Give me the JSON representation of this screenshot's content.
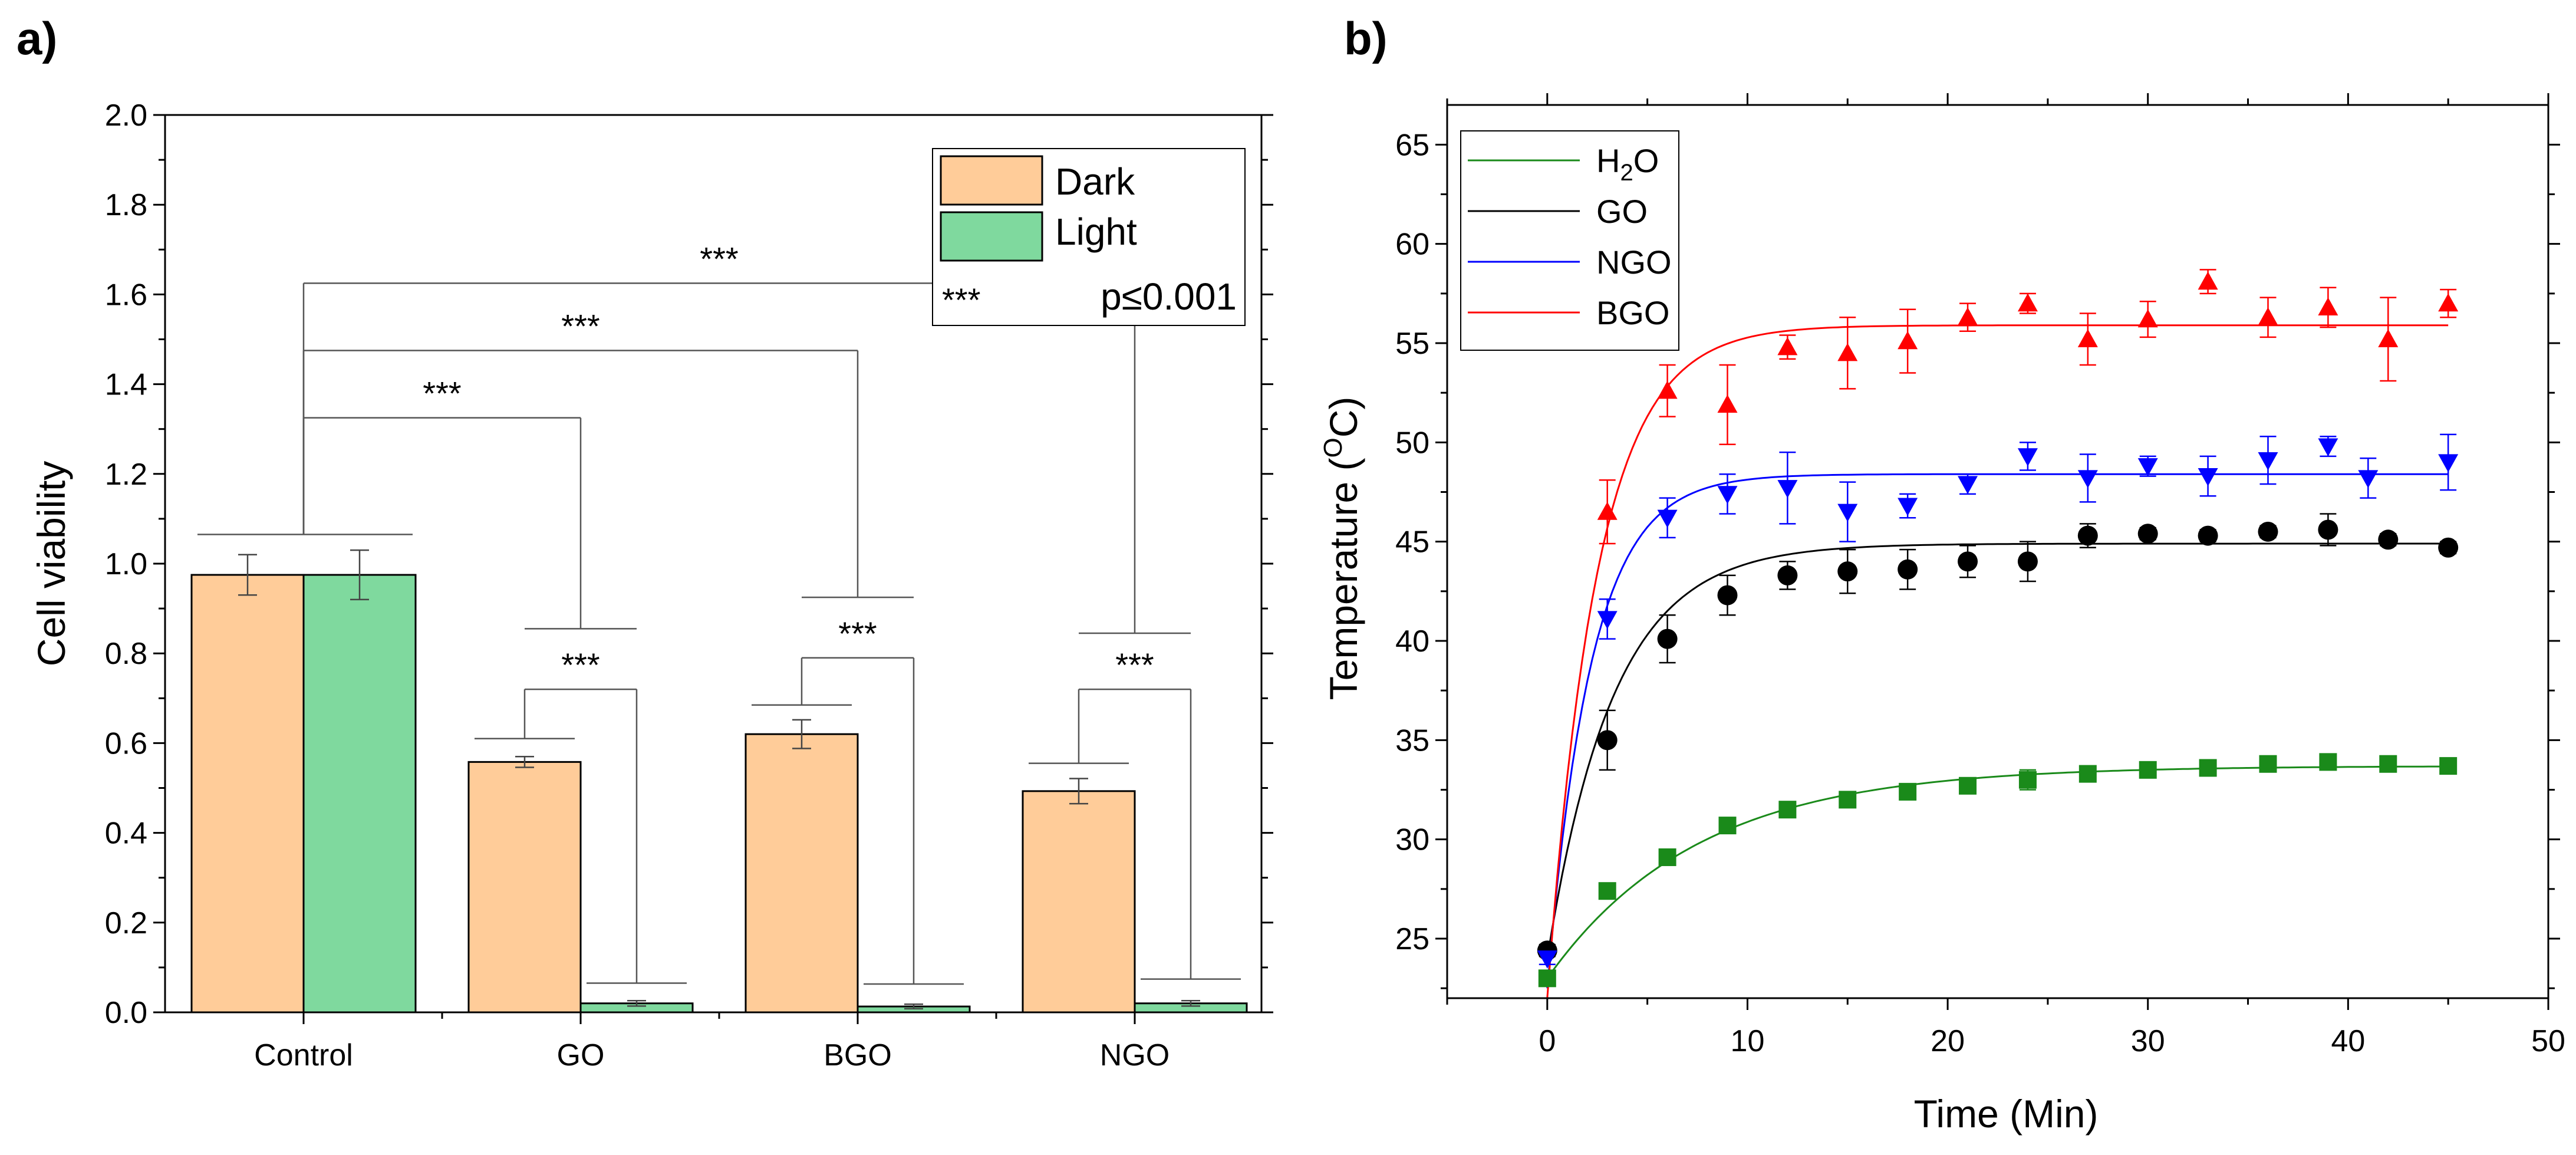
{
  "chart_data": [
    {
      "panel": "a)",
      "type": "bar",
      "ylabel": "Cell viability",
      "xlabel": "",
      "ylim": [
        0,
        2.0
      ],
      "yticks": [
        "0.0",
        "0.2",
        "0.4",
        "0.6",
        "0.8",
        "1.0",
        "1.2",
        "1.4",
        "1.6",
        "1.8",
        "2.0"
      ],
      "categories": [
        "Control",
        "GO",
        "BGO",
        "NGO"
      ],
      "series": [
        {
          "name": "Dark",
          "color": "#FFCC99",
          "values": [
            0.975,
            0.558,
            0.62,
            0.493
          ],
          "errors": [
            0.045,
            0.012,
            0.032,
            0.028
          ]
        },
        {
          "name": "Light",
          "color": "#7FD99E",
          "values": [
            0.975,
            0.02,
            0.013,
            0.02
          ],
          "errors": [
            0.055,
            0.006,
            0.005,
            0.006
          ]
        }
      ],
      "legend": {
        "entries": [
          "Dark",
          "Light"
        ],
        "sig_marker": "***",
        "sig_text": "p≤0.001",
        "placement": "top-right"
      },
      "significance": [
        {
          "label": "***",
          "from": "Control",
          "to": "GO"
        },
        {
          "label": "***",
          "from": "Control",
          "to": "BGO"
        },
        {
          "label": "***",
          "from": "Control",
          "to": "NGO"
        },
        {
          "label": "***",
          "from": "GO Dark",
          "to": "GO Light"
        },
        {
          "label": "***",
          "from": "BGO Dark",
          "to": "BGO Light"
        },
        {
          "label": "***",
          "from": "NGO Dark",
          "to": "NGO Light"
        }
      ]
    },
    {
      "panel": "b)",
      "type": "scatter",
      "xlabel": "Time (Min)",
      "ylabel_main": "Temperature (",
      "ylabel_sup": "O",
      "ylabel_tail": "C)",
      "xlim": [
        -5,
        50
      ],
      "ylim": [
        22,
        67
      ],
      "xticks": [
        "0",
        "10",
        "20",
        "30",
        "40",
        "50"
      ],
      "yticks": [
        "25",
        "30",
        "35",
        "40",
        "45",
        "50",
        "55",
        "60",
        "65"
      ],
      "series": [
        {
          "name": "H2O",
          "legend_main": "H",
          "legend_sub": "2",
          "legend_tail": "O",
          "color": "#1A8A1A",
          "marker": "square",
          "x": [
            0,
            3,
            6,
            9,
            12,
            15,
            18,
            21,
            24,
            27,
            30,
            33,
            36,
            39,
            42,
            45
          ],
          "y": [
            23.0,
            27.4,
            29.1,
            30.7,
            31.5,
            32.0,
            32.4,
            32.7,
            33.0,
            33.3,
            33.5,
            33.6,
            33.8,
            33.9,
            33.8,
            33.7
          ],
          "err": [
            0.3,
            0.3,
            0.3,
            0.3,
            0.3,
            0.3,
            0.4,
            0.4,
            0.5,
            0.3,
            0.3,
            0.3,
            0.3,
            0.3,
            0.3,
            0.3
          ],
          "fit": {
            "y0": 23.0,
            "ymax": 33.7,
            "tau": 7.5
          }
        },
        {
          "name": "GO",
          "color": "#000000",
          "marker": "circle",
          "x": [
            0,
            3,
            6,
            9,
            12,
            15,
            18,
            21,
            24,
            27,
            30,
            33,
            36,
            39,
            42,
            45
          ],
          "y": [
            24.4,
            35.0,
            40.1,
            42.3,
            43.3,
            43.5,
            43.6,
            44.0,
            44.0,
            45.3,
            45.4,
            45.3,
            45.5,
            45.6,
            45.1,
            44.7
          ],
          "err": [
            0.3,
            1.5,
            1.2,
            1.0,
            0.7,
            1.1,
            1.0,
            0.8,
            1.0,
            0.6,
            0.3,
            0.3,
            0.3,
            0.8,
            0.3,
            0.3
          ],
          "fit": {
            "y0": 24.0,
            "ymax": 44.9,
            "tau": 3.3
          }
        },
        {
          "name": "NGO",
          "color": "#0000FF",
          "marker": "triangle-down",
          "x": [
            0,
            3,
            6,
            9,
            12,
            15,
            18,
            21,
            24,
            27,
            30,
            33,
            36,
            39,
            41,
            45
          ],
          "y": [
            24.0,
            41.1,
            46.2,
            47.4,
            47.7,
            46.5,
            46.8,
            47.9,
            49.3,
            48.2,
            48.8,
            48.3,
            49.1,
            49.8,
            48.2,
            49.0
          ],
          "err": [
            0.3,
            1.0,
            1.0,
            1.0,
            1.8,
            1.5,
            0.6,
            0.5,
            0.7,
            1.2,
            0.5,
            1.0,
            1.2,
            0.5,
            1.0,
            1.4
          ],
          "fit": {
            "y0": 22.5,
            "ymax": 48.4,
            "tau": 2.2
          }
        },
        {
          "name": "BGO",
          "color": "#FF0000",
          "marker": "triangle-up",
          "x": [
            3,
            6,
            9,
            12,
            15,
            18,
            21,
            24,
            27,
            30,
            33,
            36,
            39,
            42,
            45
          ],
          "y": [
            46.5,
            52.6,
            51.9,
            54.8,
            54.5,
            55.1,
            56.3,
            57.0,
            55.2,
            56.2,
            58.1,
            56.3,
            56.8,
            55.2,
            57.0
          ],
          "err": [
            1.6,
            1.3,
            2.0,
            0.6,
            1.8,
            1.6,
            0.7,
            0.5,
            1.3,
            0.9,
            0.6,
            1.0,
            1.0,
            2.1,
            0.7
          ],
          "fit": {
            "y0": 22.0,
            "ymax": 55.9,
            "tau": 2.5
          }
        }
      ]
    }
  ]
}
